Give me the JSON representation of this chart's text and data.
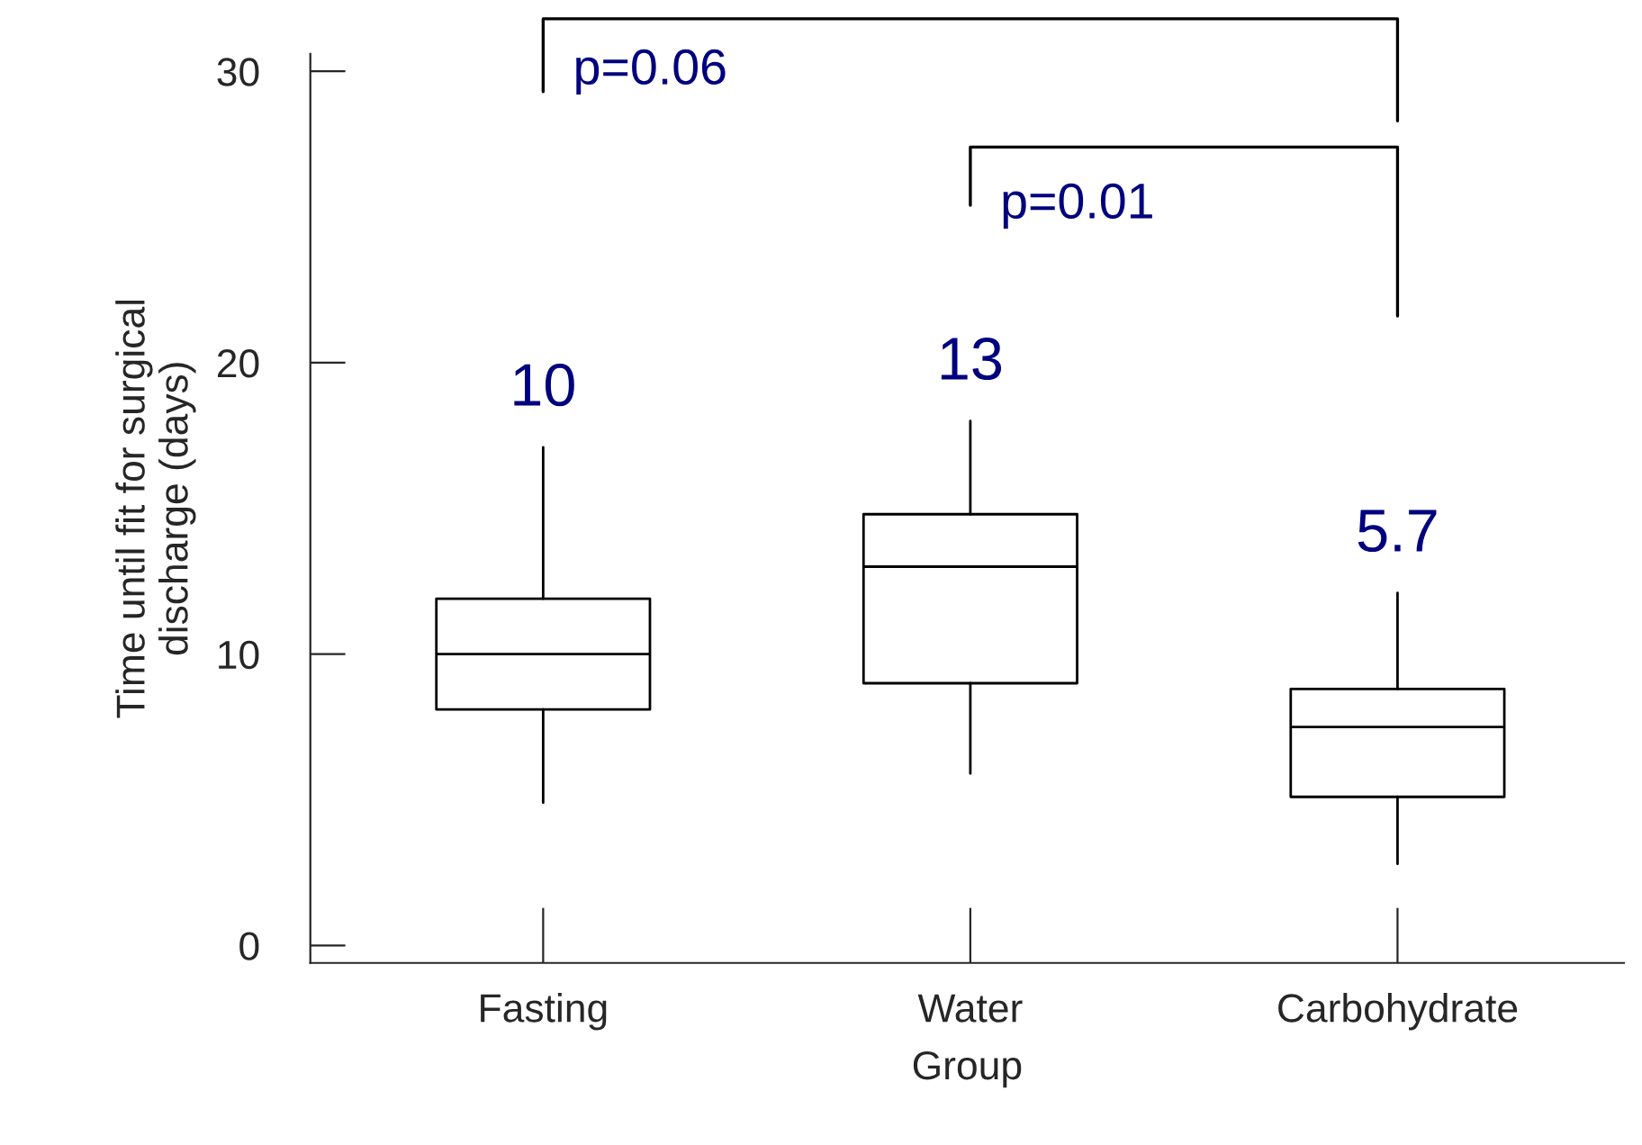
{
  "chart_data": {
    "type": "box",
    "xlabel": "Group",
    "ylabel": "Time until fit for surgical\ndischarge (days)",
    "categories": [
      "Fasting",
      "Water",
      "Carbohydrate"
    ],
    "boxes": [
      {
        "low": 4.9,
        "q1": 8.1,
        "median": 10.0,
        "q3": 11.9,
        "high": 17.1
      },
      {
        "low": 5.9,
        "q1": 9.0,
        "median": 13.0,
        "q3": 14.8,
        "high": 18.0
      },
      {
        "low": 2.8,
        "q1": 5.1,
        "median": 7.5,
        "q3": 8.8,
        "high": 12.1
      }
    ],
    "ylim": [
      -0.6,
      30.6
    ],
    "yticks": [
      0,
      10,
      20,
      30
    ],
    "grid": false,
    "annotations": [
      "10",
      "13",
      "5.7",
      "p=0.06",
      "p=0.01"
    ]
  }
}
